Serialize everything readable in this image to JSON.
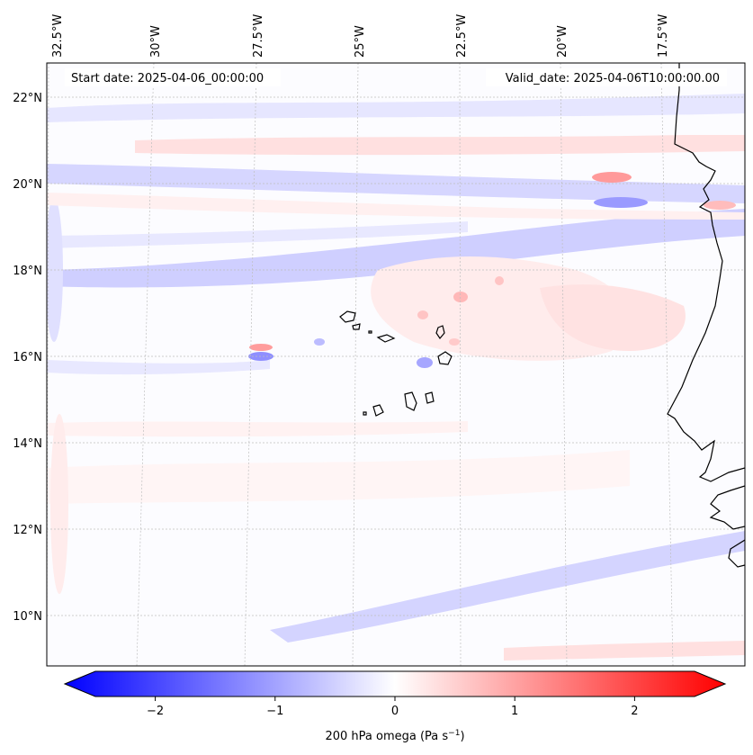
{
  "map": {
    "start_date": "Start date: 2025-04-06_00:00:00",
    "valid_date": "Valid_date: 2025-04-06T10:00:00.00",
    "lon_labels": [
      "32.5°W",
      "30°W",
      "27.5°W",
      "25°W",
      "22.5°W",
      "20°W",
      "17.5°W"
    ],
    "lat_labels": [
      "22°N",
      "20°N",
      "18°N",
      "16°N",
      "14°N",
      "12°N",
      "10°N"
    ],
    "colorbar": {
      "tick_labels": [
        "−2",
        "−1",
        "0",
        "1",
        "2"
      ],
      "tick_values": [
        -2,
        -1,
        0,
        1,
        2
      ],
      "range": [
        -2.5,
        2.5
      ],
      "label": "200 hPa omega (Pa s",
      "label_exp": "−1",
      "label_close": ")"
    },
    "colors": {
      "negative": "#0000ff",
      "neutral": "#ffffff",
      "positive": "#ff0000",
      "coast": "#000000"
    }
  }
}
